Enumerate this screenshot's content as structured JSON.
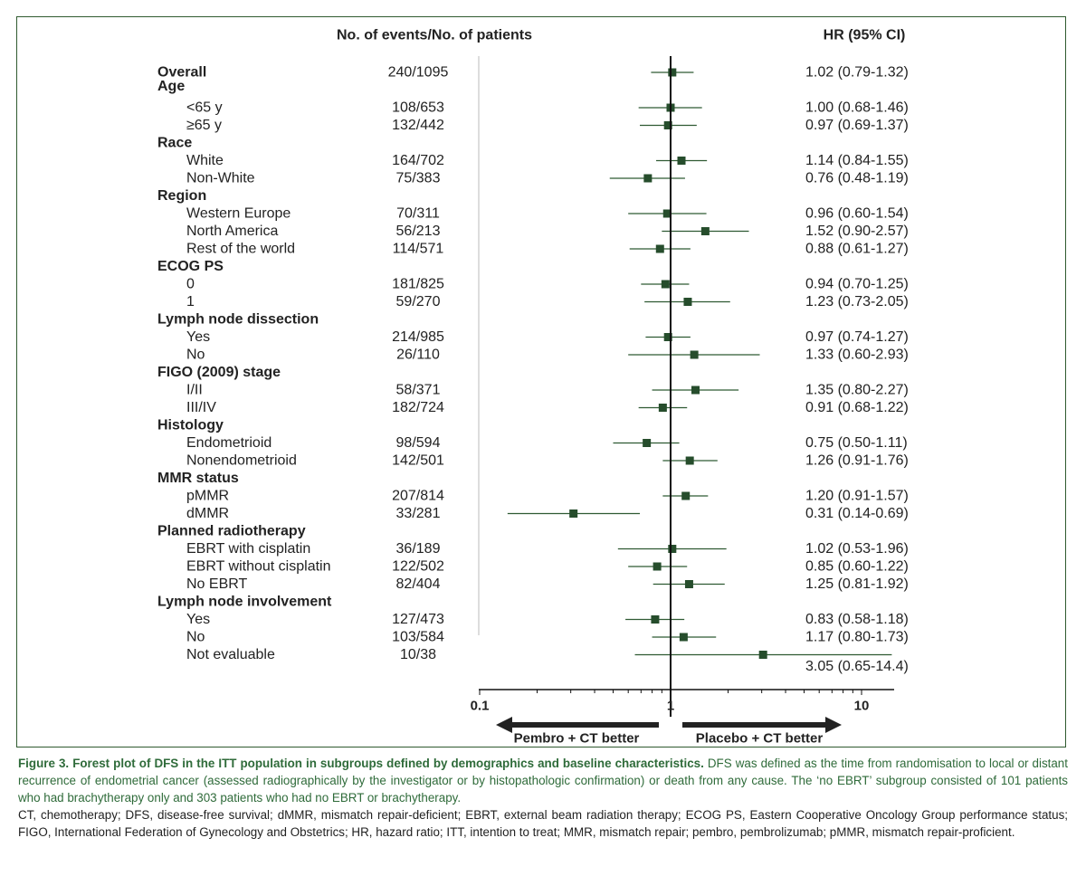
{
  "chart_data": {
    "type": "forest",
    "header_events": "No. of events/No. of patients",
    "header_hr": "HR (95% CI)",
    "x_scale": "log",
    "xlim": [
      0.1,
      15
    ],
    "reference_line": 1,
    "xticks": [
      {
        "value": 0.1,
        "label": "0.1"
      },
      {
        "value": 1,
        "label": "1"
      },
      {
        "value": 10,
        "label": "10"
      }
    ],
    "arrow_left_label": "Pembro + CT better",
    "arrow_right_label": "Placebo + CT better",
    "colors": {
      "marker": "#264d2c",
      "ci_line": "#2f5a33",
      "frame": "#2f5a2f",
      "caption_accent": "#2f6b3a"
    },
    "rows": [
      {
        "label": "Overall",
        "kind": "group",
        "events": "240/1095",
        "hr_text": "1.02 (0.79-1.32)",
        "hr": 1.02,
        "lo": 0.79,
        "hi": 1.32
      },
      {
        "label": "Age",
        "kind": "header"
      },
      {
        "label": "<65 y",
        "kind": "sub",
        "events": "108/653",
        "hr_text": "1.00 (0.68-1.46)",
        "hr": 1.0,
        "lo": 0.68,
        "hi": 1.46
      },
      {
        "label": "≥65 y",
        "kind": "sub",
        "events": "132/442",
        "hr_text": "0.97 (0.69-1.37)",
        "hr": 0.97,
        "lo": 0.69,
        "hi": 1.37
      },
      {
        "label": "Race",
        "kind": "header"
      },
      {
        "label": "White",
        "kind": "sub",
        "events": "164/702",
        "hr_text": "1.14 (0.84-1.55)",
        "hr": 1.14,
        "lo": 0.84,
        "hi": 1.55
      },
      {
        "label": "Non-White",
        "kind": "sub",
        "events": "75/383",
        "hr_text": "0.76 (0.48-1.19)",
        "hr": 0.76,
        "lo": 0.48,
        "hi": 1.19
      },
      {
        "label": "Region",
        "kind": "header"
      },
      {
        "label": "Western Europe",
        "kind": "sub",
        "events": "70/311",
        "hr_text": "0.96 (0.60-1.54)",
        "hr": 0.96,
        "lo": 0.6,
        "hi": 1.54
      },
      {
        "label": "North America",
        "kind": "sub",
        "events": "56/213",
        "hr_text": "1.52 (0.90-2.57)",
        "hr": 1.52,
        "lo": 0.9,
        "hi": 2.57
      },
      {
        "label": "Rest of the world",
        "kind": "sub",
        "events": "114/571",
        "hr_text": "0.88 (0.61-1.27)",
        "hr": 0.88,
        "lo": 0.61,
        "hi": 1.27
      },
      {
        "label": "ECOG PS",
        "kind": "header"
      },
      {
        "label": "0",
        "kind": "sub",
        "events": "181/825",
        "hr_text": "0.94 (0.70-1.25)",
        "hr": 0.94,
        "lo": 0.7,
        "hi": 1.25
      },
      {
        "label": "1",
        "kind": "sub",
        "events": "59/270",
        "hr_text": "1.23 (0.73-2.05)",
        "hr": 1.23,
        "lo": 0.73,
        "hi": 2.05
      },
      {
        "label": "Lymph node dissection",
        "kind": "header"
      },
      {
        "label": "Yes",
        "kind": "sub",
        "events": "214/985",
        "hr_text": "0.97 (0.74-1.27)",
        "hr": 0.97,
        "lo": 0.74,
        "hi": 1.27
      },
      {
        "label": "No",
        "kind": "sub",
        "events": "26/110",
        "hr_text": "1.33 (0.60-2.93)",
        "hr": 1.33,
        "lo": 0.6,
        "hi": 2.93
      },
      {
        "label": "FIGO (2009) stage",
        "kind": "header"
      },
      {
        "label": "I/II",
        "kind": "sub",
        "events": "58/371",
        "hr_text": "1.35 (0.80-2.27)",
        "hr": 1.35,
        "lo": 0.8,
        "hi": 2.27
      },
      {
        "label": "III/IV",
        "kind": "sub",
        "events": "182/724",
        "hr_text": "0.91 (0.68-1.22)",
        "hr": 0.91,
        "lo": 0.68,
        "hi": 1.22
      },
      {
        "label": "Histology",
        "kind": "header"
      },
      {
        "label": "Endometrioid",
        "kind": "sub",
        "events": "98/594",
        "hr_text": "0.75 (0.50-1.11)",
        "hr": 0.75,
        "lo": 0.5,
        "hi": 1.11
      },
      {
        "label": "Nonendometrioid",
        "kind": "sub",
        "events": "142/501",
        "hr_text": "1.26 (0.91-1.76)",
        "hr": 1.26,
        "lo": 0.91,
        "hi": 1.76
      },
      {
        "label": "MMR status",
        "kind": "header"
      },
      {
        "label": "pMMR",
        "kind": "sub",
        "events": "207/814",
        "hr_text": "1.20 (0.91-1.57)",
        "hr": 1.2,
        "lo": 0.91,
        "hi": 1.57
      },
      {
        "label": "dMMR",
        "kind": "sub",
        "events": "33/281",
        "hr_text": "0.31 (0.14-0.69)",
        "hr": 0.31,
        "lo": 0.14,
        "hi": 0.69
      },
      {
        "label": "Planned radiotherapy",
        "kind": "header"
      },
      {
        "label": "EBRT with cisplatin",
        "kind": "sub",
        "events": "36/189",
        "hr_text": "1.02 (0.53-1.96)",
        "hr": 1.02,
        "lo": 0.53,
        "hi": 1.96
      },
      {
        "label": "EBRT without cisplatin",
        "kind": "sub",
        "events": "122/502",
        "hr_text": "0.85 (0.60-1.22)",
        "hr": 0.85,
        "lo": 0.6,
        "hi": 1.22
      },
      {
        "label": "No EBRT",
        "kind": "sub",
        "events": "82/404",
        "hr_text": "1.25 (0.81-1.92)",
        "hr": 1.25,
        "lo": 0.81,
        "hi": 1.92
      },
      {
        "label": "Lymph node involvement",
        "kind": "header"
      },
      {
        "label": "Yes",
        "kind": "sub",
        "events": "127/473",
        "hr_text": "0.83 (0.58-1.18)",
        "hr": 0.83,
        "lo": 0.58,
        "hi": 1.18
      },
      {
        "label": "No",
        "kind": "sub",
        "events": "103/584",
        "hr_text": "1.17 (0.80-1.73)",
        "hr": 1.17,
        "lo": 0.8,
        "hi": 1.73
      },
      {
        "label": "Not evaluable",
        "kind": "sub",
        "events": "10/38",
        "hr_text": "3.05 (0.65-14.4)",
        "hr": 3.05,
        "lo": 0.65,
        "hi": 14.4,
        "hr_text_below": true
      }
    ]
  },
  "caption": {
    "fig_label": "Figure 3.",
    "title": "Forest plot of DFS in the ITT population in subgroups defined by demographics and baseline characteristics.",
    "body": "DFS was defined as the time from randomisation to local or distant recurrence of endometrial cancer (assessed radiographically by the investigator or by histopathologic confirmation) or death from any cause. The ‘no EBRT’ subgroup consisted of 101 patients who had brachytherapy only and 303 patients who had no EBRT or brachytherapy.",
    "abbreviations": "CT, chemotherapy; DFS, disease-free survival; dMMR, mismatch repair-deficient; EBRT, external beam radiation therapy; ECOG PS, Eastern Cooperative Oncology Group performance status; FIGO, International Federation of Gynecology and Obstetrics; HR, hazard ratio; ITT, intention to treat; MMR, mismatch repair; pembro, pembrolizumab; pMMR, mismatch repair-proficient."
  }
}
